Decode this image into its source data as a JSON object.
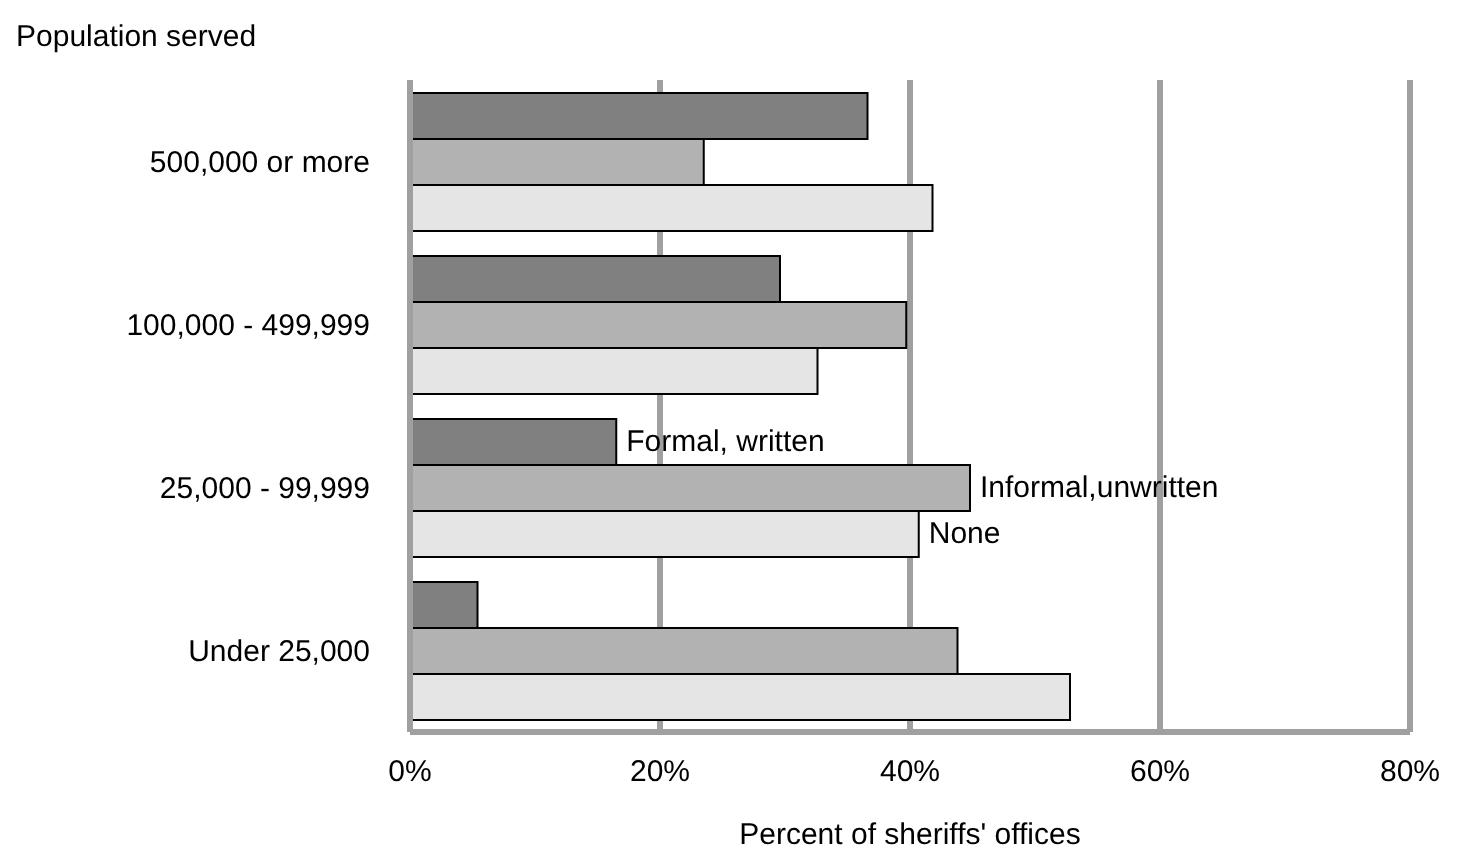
{
  "chart_data": {
    "type": "bar",
    "orientation": "horizontal",
    "ylabel": "Population served",
    "xlabel": "Percent of sheriffs' offices",
    "categories": [
      "500,000 or more",
      "100,000 - 499,999",
      "25,000 - 99,999",
      "Under 25,000"
    ],
    "series": [
      {
        "name": "Formal, written",
        "color": "#808080",
        "values": [
          36.6,
          29.6,
          16.5,
          5.4
        ]
      },
      {
        "name": "Informal,unwritten",
        "color": "#b2b2b2",
        "values": [
          23.5,
          39.7,
          44.8,
          43.8
        ]
      },
      {
        "name": "None",
        "color": "#e5e5e5",
        "values": [
          41.8,
          32.6,
          40.7,
          52.8
        ]
      }
    ],
    "xlim": [
      0,
      80
    ],
    "xticks": [
      {
        "value": 0,
        "label": "0%"
      },
      {
        "value": 20,
        "label": "20%"
      },
      {
        "value": 40,
        "label": "40%"
      },
      {
        "value": 60,
        "label": "60%"
      },
      {
        "value": 80,
        "label": "80%"
      }
    ],
    "grid": "x"
  }
}
